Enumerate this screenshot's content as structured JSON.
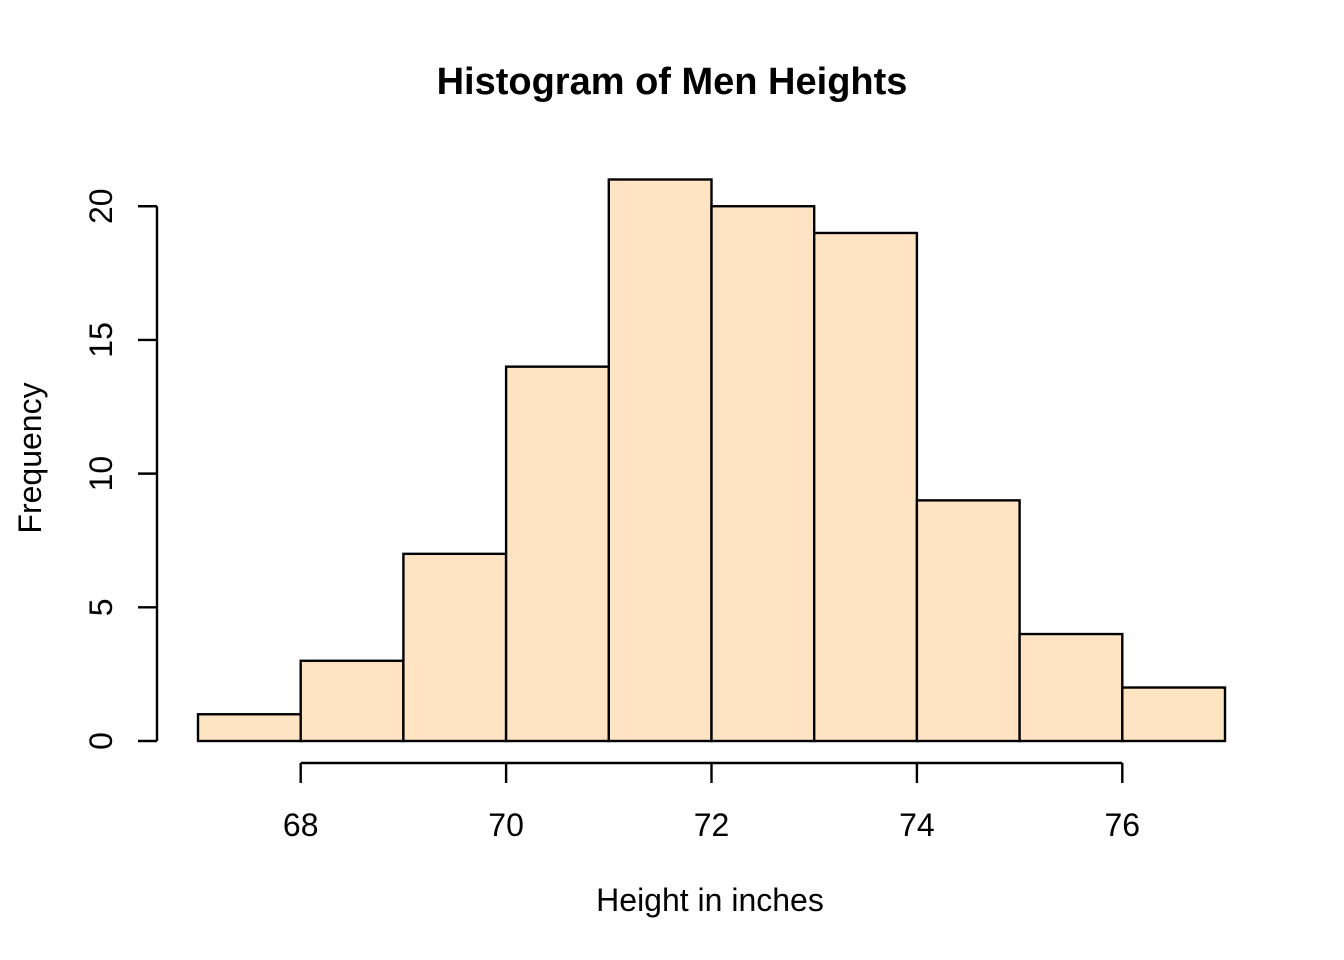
{
  "chart_data": {
    "type": "bar",
    "subtype": "histogram",
    "title": "Histogram of Men Heights",
    "xlabel": "Height in inches",
    "ylabel": "Frequency",
    "bin_edges": [
      67,
      68,
      69,
      70,
      71,
      72,
      73,
      74,
      75,
      76,
      77
    ],
    "counts": [
      1,
      3,
      7,
      14,
      21,
      20,
      19,
      9,
      4,
      2
    ],
    "x_ticks": [
      68,
      70,
      72,
      74,
      76
    ],
    "y_ticks": [
      0,
      5,
      10,
      15,
      20
    ],
    "xlim": [
      67,
      77
    ],
    "ylim": [
      0,
      21
    ],
    "grid": false,
    "legend": null,
    "colors": {
      "bar_fill": "#FFE4C4",
      "bar_stroke": "#000000",
      "axis": "#000000",
      "text": "#000000",
      "background": "#FFFFFF"
    }
  }
}
